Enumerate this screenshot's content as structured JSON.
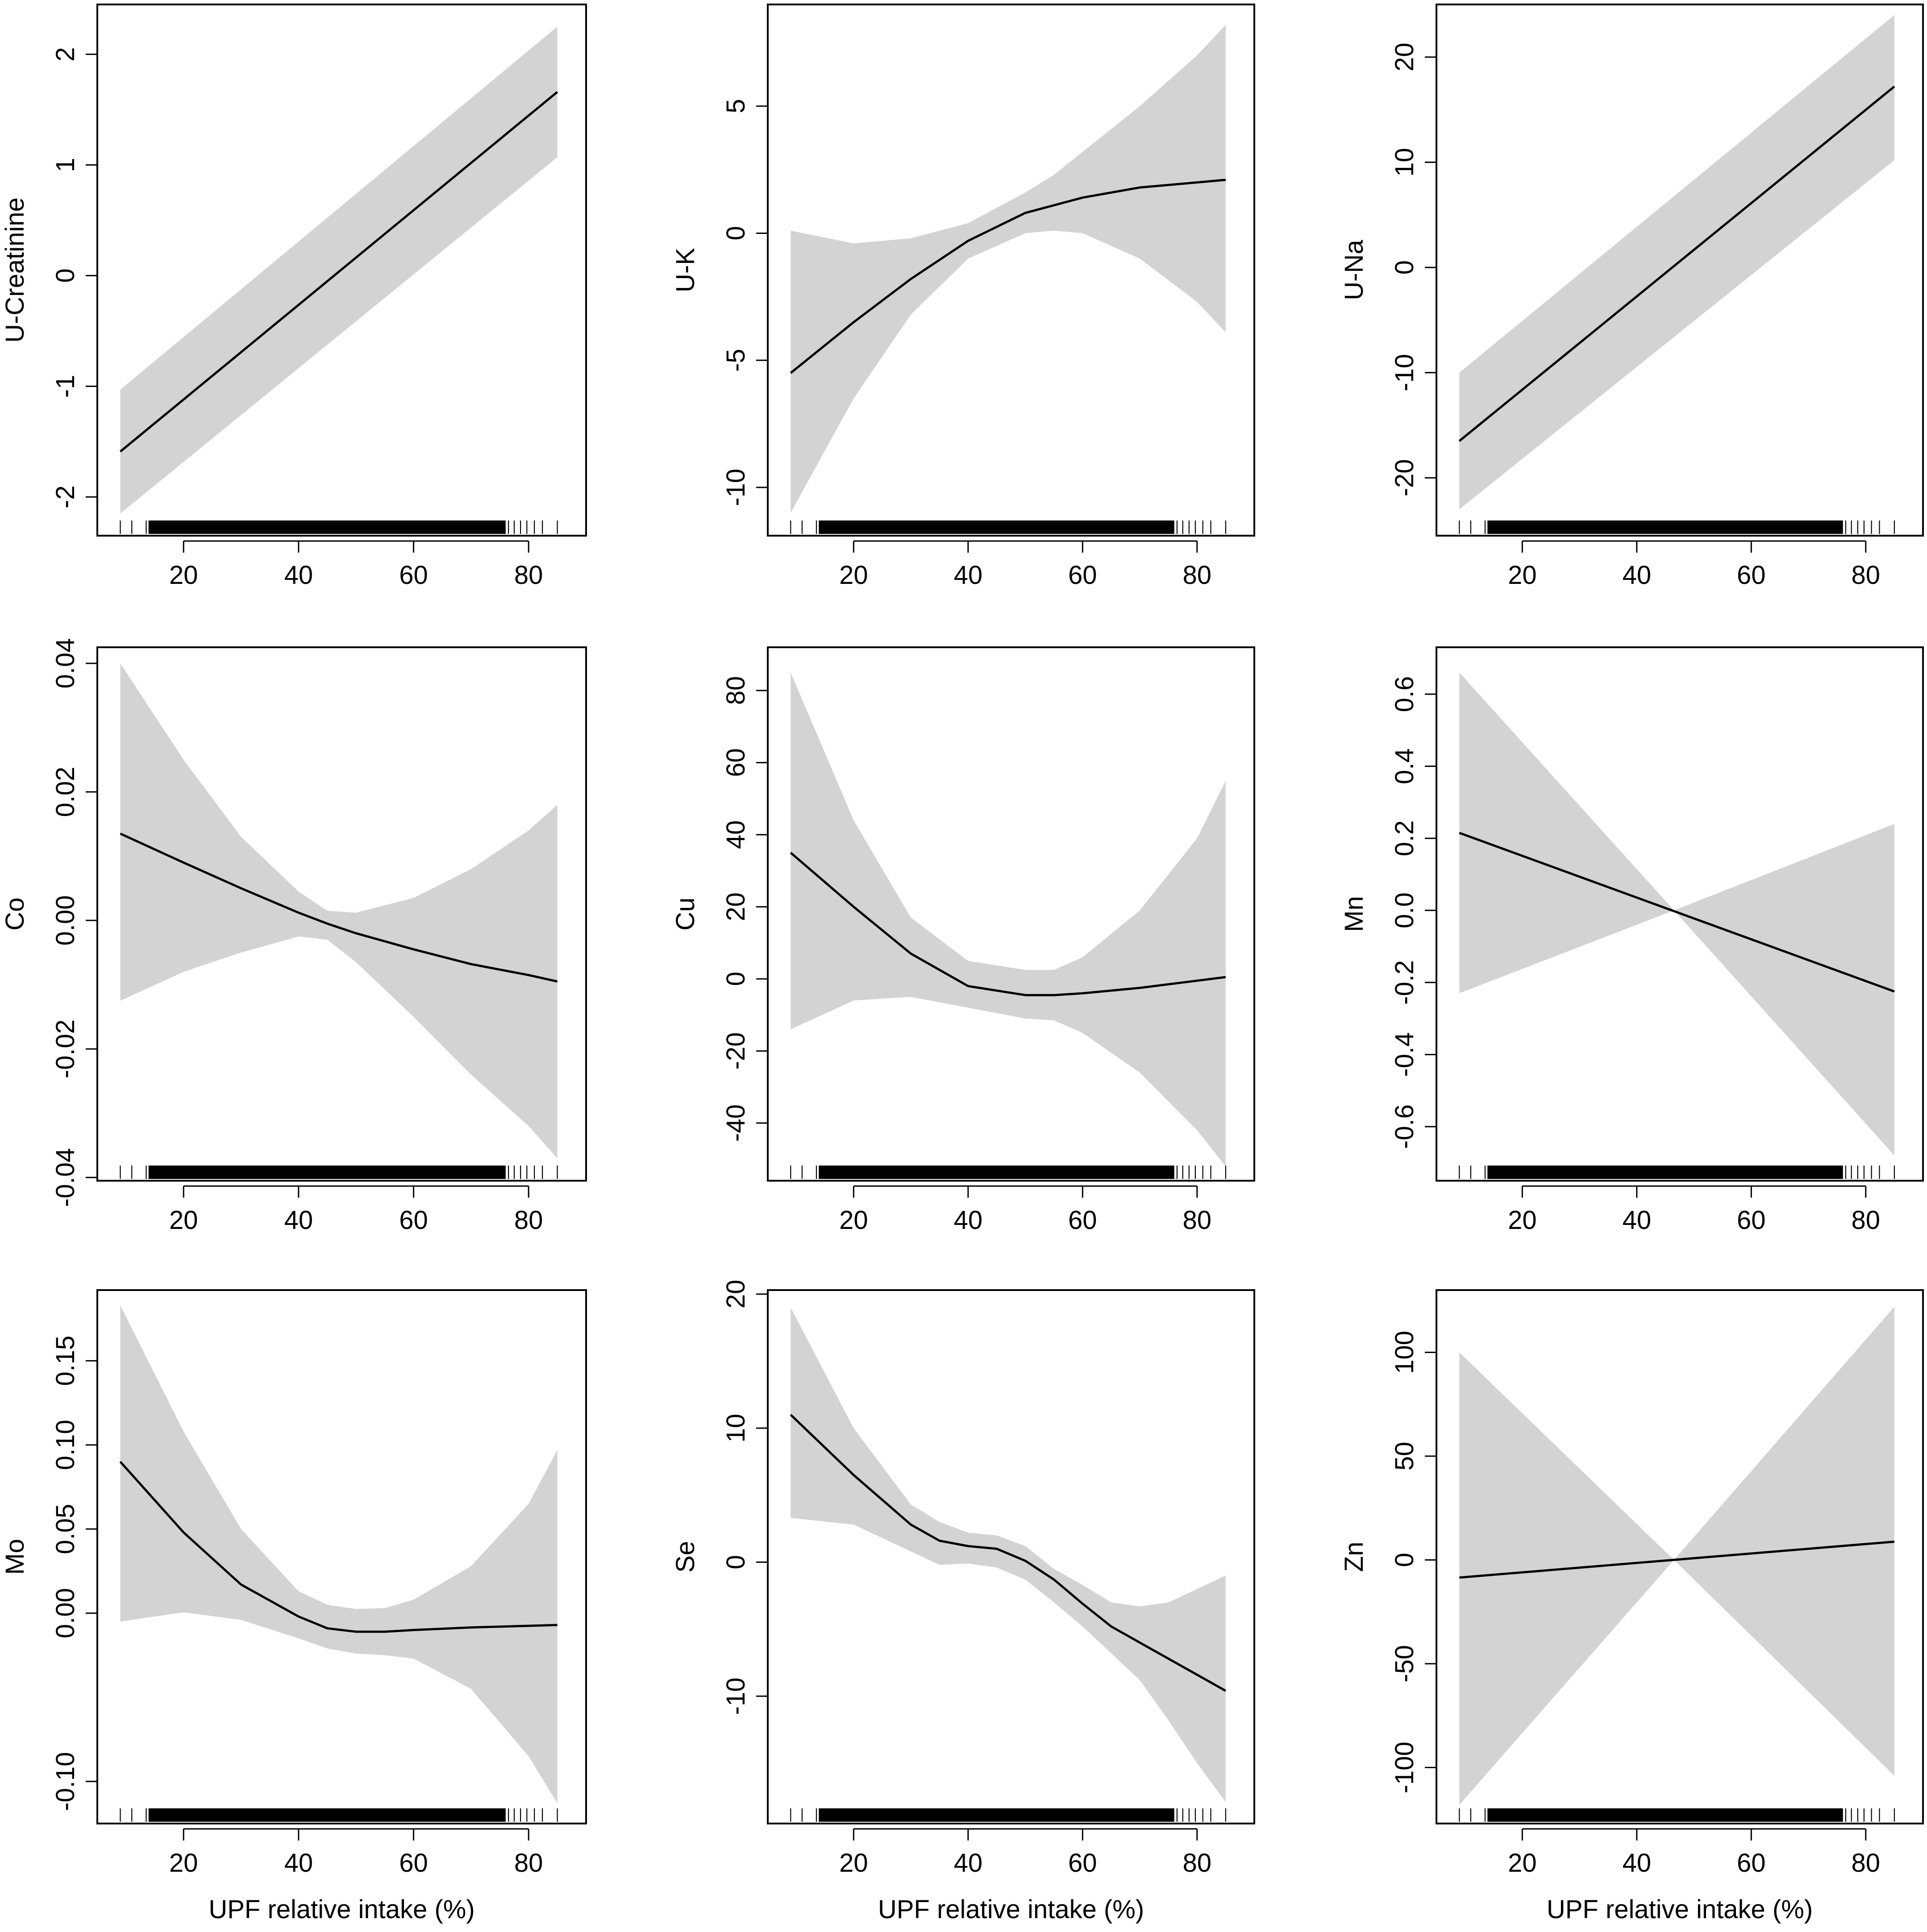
{
  "figure": {
    "colors": {
      "band": "#d3d3d3",
      "line": "#000000",
      "frame": "#000000",
      "background": "#ffffff"
    }
  },
  "chart_data": [
    {
      "type": "line",
      "xlabel": "",
      "ylabel": "U-Creatinine",
      "xlim": [
        5,
        90
      ],
      "ylim": [
        -2.35,
        2.45
      ],
      "xticks": [
        20,
        40,
        60,
        80
      ],
      "yticks": [
        -2,
        -1,
        0,
        1,
        2
      ],
      "band": {
        "x": [
          9,
          85
        ],
        "upper": [
          -1.03,
          2.25
        ],
        "lower": [
          -2.15,
          1.07
        ]
      },
      "series": [
        {
          "x": [
            9,
            85
          ],
          "y": [
            -1.59,
            1.66
          ]
        }
      ]
    },
    {
      "type": "line",
      "xlabel": "",
      "ylabel": "U-K",
      "xlim": [
        5,
        90
      ],
      "ylim": [
        -11.9,
        9
      ],
      "xticks": [
        20,
        40,
        60,
        80
      ],
      "yticks": [
        -10,
        -5,
        0,
        5
      ],
      "band": {
        "x": [
          9,
          20,
          30,
          40,
          50,
          55,
          60,
          70,
          80,
          85
        ],
        "upper": [
          0.1,
          -0.4,
          -0.2,
          0.4,
          1.6,
          2.3,
          3.2,
          5.0,
          7.0,
          8.2
        ],
        "lower": [
          -11.0,
          -6.5,
          -3.2,
          -1.0,
          0.0,
          0.1,
          0.0,
          -1.0,
          -2.7,
          -3.9
        ]
      },
      "series": [
        {
          "x": [
            9,
            20,
            30,
            40,
            50,
            55,
            60,
            70,
            80,
            85
          ],
          "y": [
            -5.5,
            -3.5,
            -1.8,
            -0.3,
            0.8,
            1.1,
            1.4,
            1.8,
            2.0,
            2.1
          ]
        }
      ]
    },
    {
      "type": "line",
      "xlabel": "",
      "ylabel": "U-Na",
      "xlim": [
        5,
        90
      ],
      "ylim": [
        -25.5,
        25
      ],
      "xticks": [
        20,
        40,
        60,
        80
      ],
      "yticks": [
        -20,
        -10,
        0,
        10,
        20
      ],
      "band": {
        "x": [
          9,
          85
        ],
        "upper": [
          -10.0,
          24.0
        ],
        "lower": [
          -23.0,
          10.2
        ]
      },
      "series": [
        {
          "x": [
            9,
            85
          ],
          "y": [
            -16.5,
            17.2
          ]
        }
      ]
    },
    {
      "type": "line",
      "xlabel": "",
      "ylabel": "Co",
      "xlim": [
        5,
        90
      ],
      "ylim": [
        -0.0405,
        0.0425
      ],
      "xticks": [
        20,
        40,
        60,
        80
      ],
      "yticks": [
        -0.04,
        -0.02,
        0.0,
        0.02,
        0.04
      ],
      "ytick_labels": [
        "-0.04",
        "-0.02",
        "0.00",
        "0.02",
        "0.04"
      ],
      "band": {
        "x": [
          9,
          20,
          30,
          40,
          45,
          50,
          60,
          70,
          80,
          85
        ],
        "upper": [
          0.04,
          0.025,
          0.013,
          0.0045,
          0.0015,
          0.0012,
          0.0035,
          0.008,
          0.014,
          0.018
        ],
        "lower": [
          -0.0125,
          -0.008,
          -0.005,
          -0.0025,
          -0.003,
          -0.0065,
          -0.015,
          -0.024,
          -0.032,
          -0.037
        ]
      },
      "series": [
        {
          "x": [
            9,
            20,
            30,
            40,
            45,
            50,
            60,
            70,
            80,
            85
          ],
          "y": [
            0.0135,
            0.009,
            0.005,
            0.0012,
            -0.0005,
            -0.002,
            -0.0045,
            -0.0068,
            -0.0085,
            -0.0095
          ]
        }
      ]
    },
    {
      "type": "line",
      "xlabel": "",
      "ylabel": "Cu",
      "xlim": [
        5,
        90
      ],
      "ylim": [
        -56,
        92
      ],
      "xticks": [
        20,
        40,
        60,
        80
      ],
      "yticks": [
        -40,
        -20,
        0,
        20,
        40,
        60,
        80
      ],
      "band": {
        "x": [
          9,
          20,
          30,
          40,
          50,
          55,
          60,
          70,
          80,
          85
        ],
        "upper": [
          85,
          44,
          17,
          5,
          2.5,
          2.5,
          6,
          19,
          39,
          55
        ],
        "lower": [
          -14,
          -6,
          -5,
          -8,
          -11,
          -11.5,
          -15,
          -26,
          -42,
          -52
        ]
      },
      "series": [
        {
          "x": [
            9,
            20,
            30,
            40,
            50,
            55,
            60,
            70,
            80,
            85
          ],
          "y": [
            35,
            20,
            7,
            -2,
            -4.5,
            -4.5,
            -4,
            -2.5,
            -0.5,
            0.5
          ]
        }
      ]
    },
    {
      "type": "line",
      "xlabel": "",
      "ylabel": "Mn",
      "xlim": [
        5,
        90
      ],
      "ylim": [
        -0.75,
        0.73
      ],
      "xticks": [
        20,
        40,
        60,
        80
      ],
      "yticks": [
        -0.6,
        -0.4,
        -0.2,
        0.0,
        0.2,
        0.4,
        0.6
      ],
      "ytick_labels": [
        "-0.6",
        "-0.4",
        "-0.2",
        "0.0",
        "0.2",
        "0.4",
        "0.6"
      ],
      "band": {
        "x": [
          9,
          46.5,
          85
        ],
        "upper": [
          0.66,
          0.0,
          0.24
        ],
        "lower": [
          -0.23,
          0.0,
          -0.68
        ]
      },
      "series": [
        {
          "x": [
            9,
            85
          ],
          "y": [
            0.215,
            -0.225
          ]
        }
      ]
    },
    {
      "type": "line",
      "xlabel": "UPF relative intake (%)",
      "ylabel": "Mo",
      "xlim": [
        5,
        90
      ],
      "ylim": [
        -0.125,
        0.192
      ],
      "xticks": [
        20,
        40,
        60,
        80
      ],
      "yticks": [
        -0.1,
        0.0,
        0.05,
        0.1,
        0.15
      ],
      "ytick_labels": [
        "-0.10",
        "0.00",
        "0.05",
        "0.10",
        "0.15"
      ],
      "band": {
        "x": [
          9,
          20,
          30,
          40,
          45,
          50,
          55,
          60,
          70,
          80,
          85
        ],
        "upper": [
          0.183,
          0.108,
          0.05,
          0.013,
          0.005,
          0.0025,
          0.003,
          0.008,
          0.028,
          0.065,
          0.097
        ],
        "lower": [
          -0.005,
          0.0005,
          -0.004,
          -0.015,
          -0.021,
          -0.024,
          -0.025,
          -0.027,
          -0.045,
          -0.085,
          -0.113
        ]
      },
      "series": [
        {
          "x": [
            9,
            20,
            30,
            40,
            45,
            50,
            55,
            60,
            70,
            80,
            85
          ],
          "y": [
            0.09,
            0.048,
            0.017,
            -0.002,
            -0.009,
            -0.011,
            -0.011,
            -0.01,
            -0.0085,
            -0.0075,
            -0.007
          ]
        }
      ]
    },
    {
      "type": "line",
      "xlabel": "UPF relative intake (%)",
      "ylabel": "Se",
      "xlim": [
        5,
        90
      ],
      "ylim": [
        -19.5,
        20.3
      ],
      "xticks": [
        20,
        40,
        60,
        80
      ],
      "yticks": [
        -10,
        0,
        10,
        20
      ],
      "band": {
        "x": [
          9,
          20,
          30,
          35,
          40,
          45,
          50,
          55,
          60,
          65,
          70,
          75,
          80,
          85
        ],
        "upper": [
          19,
          10,
          4.3,
          3,
          2.2,
          2.0,
          1.2,
          -0.5,
          -1.7,
          -3.0,
          -3.3,
          -3.0,
          -2.0,
          -1.0
        ],
        "lower": [
          3.3,
          2.8,
          0.8,
          -0.2,
          -0.1,
          -0.4,
          -1.3,
          -3.0,
          -4.8,
          -6.8,
          -8.8,
          -11.8,
          -15.0,
          -17.9
        ]
      },
      "series": [
        {
          "x": [
            9,
            20,
            30,
            35,
            40,
            45,
            50,
            55,
            60,
            65,
            70,
            75,
            80,
            85
          ],
          "y": [
            11,
            6.5,
            2.8,
            1.6,
            1.2,
            1.0,
            0.1,
            -1.3,
            -3.1,
            -4.8,
            -6.0,
            -7.2,
            -8.4,
            -9.6
          ]
        }
      ]
    },
    {
      "type": "line",
      "xlabel": "UPF relative intake (%)",
      "ylabel": "Zn",
      "xlim": [
        5,
        90
      ],
      "ylim": [
        -127,
        130
      ],
      "xticks": [
        20,
        40,
        60,
        80
      ],
      "yticks": [
        -100,
        -50,
        0,
        50,
        100
      ],
      "band": {
        "x": [
          9,
          46.5,
          85
        ],
        "upper": [
          100,
          0,
          122
        ],
        "lower": [
          -118,
          0,
          -104
        ]
      },
      "series": [
        {
          "x": [
            9,
            85
          ],
          "y": [
            -8.5,
            8.8
          ]
        }
      ]
    }
  ]
}
